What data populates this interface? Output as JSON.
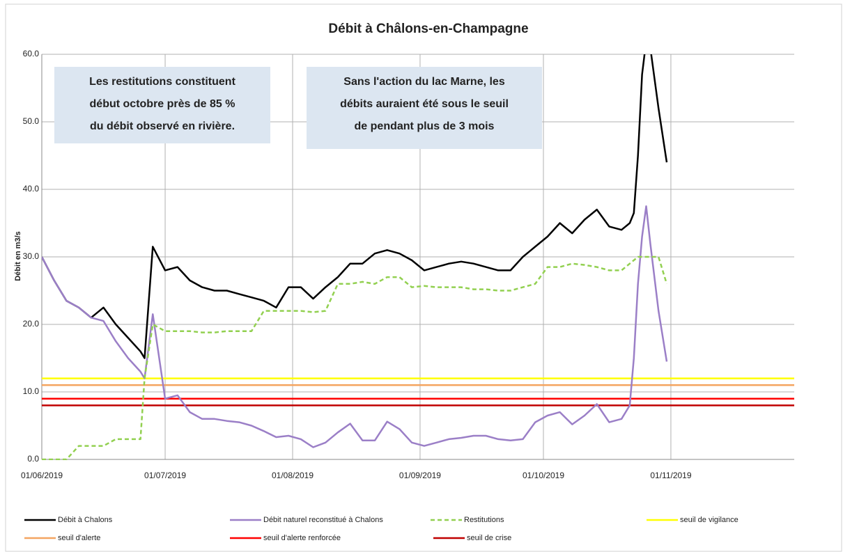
{
  "chart_data": {
    "type": "line",
    "title": "Débit à Châlons-en-Champagne",
    "y_label": "Débit en m3/s",
    "x": [
      "01/06/2019",
      "04/06/2019",
      "07/06/2019",
      "10/06/2019",
      "13/06/2019",
      "16/06/2019",
      "19/06/2019",
      "22/06/2019",
      "25/06/2019",
      "26/06/2019",
      "28/06/2019",
      "01/07/2019",
      "04/07/2019",
      "07/07/2019",
      "10/07/2019",
      "13/07/2019",
      "16/07/2019",
      "19/07/2019",
      "22/07/2019",
      "25/07/2019",
      "28/07/2019",
      "31/07/2019",
      "03/08/2019",
      "06/08/2019",
      "09/08/2019",
      "12/08/2019",
      "15/08/2019",
      "18/08/2019",
      "21/08/2019",
      "24/08/2019",
      "27/08/2019",
      "30/08/2019",
      "02/09/2019",
      "05/09/2019",
      "08/09/2019",
      "11/09/2019",
      "14/09/2019",
      "17/09/2019",
      "20/09/2019",
      "23/09/2019",
      "26/09/2019",
      "29/09/2019",
      "02/10/2019",
      "05/10/2019",
      "08/10/2019",
      "11/10/2019",
      "14/10/2019",
      "17/10/2019",
      "20/10/2019",
      "22/10/2019",
      "23/10/2019",
      "24/10/2019",
      "25/10/2019",
      "26/10/2019",
      "27/10/2019",
      "29/10/2019",
      "31/10/2019"
    ],
    "series": [
      {
        "name": "Débit à Chalons",
        "color": "#000000",
        "dash": false,
        "values": [
          30,
          26.5,
          23.5,
          22.5,
          21,
          22.5,
          20,
          18,
          16,
          15,
          31.5,
          28,
          28.5,
          26.5,
          25.5,
          25,
          25,
          24.5,
          24,
          23.5,
          22.5,
          25.5,
          25.5,
          23.8,
          25.5,
          27,
          29,
          29,
          30.5,
          31,
          30.5,
          29.5,
          28,
          28.5,
          29,
          29.3,
          29,
          28.5,
          28,
          28,
          30,
          31.5,
          33,
          35,
          33.5,
          35.5,
          37,
          34.5,
          34,
          35,
          36.5,
          45,
          57,
          62,
          61,
          52,
          44
        ]
      },
      {
        "name": "Débit naturel reconstitué à Chalons",
        "color": "#9b7fc7",
        "dash": false,
        "values": [
          30,
          26.5,
          23.5,
          22.5,
          21,
          20.5,
          17.5,
          15,
          13,
          12,
          21.5,
          9,
          9.5,
          7,
          6,
          6,
          5.7,
          5.5,
          5,
          4.2,
          3.3,
          3.5,
          3,
          1.8,
          2.5,
          4,
          5.3,
          2.8,
          2.8,
          5.6,
          4.5,
          2.5,
          2,
          2.5,
          3,
          3.2,
          3.5,
          3.5,
          3,
          2.8,
          3,
          5.5,
          6.5,
          7,
          5.2,
          6.5,
          8.2,
          5.5,
          6,
          8,
          15,
          26,
          33,
          37.5,
          32,
          22,
          14.5
        ]
      },
      {
        "name": "Restitutions",
        "color": "#92d050",
        "dash": true,
        "values": [
          0,
          0,
          0,
          2,
          2,
          2,
          3,
          3,
          3,
          12,
          20,
          19,
          19,
          19,
          18.8,
          18.8,
          19,
          19,
          19,
          22,
          22,
          22,
          22,
          21.8,
          22,
          26,
          26,
          26.3,
          26,
          27,
          27,
          25.5,
          25.7,
          25.5,
          25.5,
          25.5,
          25.2,
          25.2,
          25,
          25,
          25.5,
          26,
          28.5,
          28.5,
          29,
          28.8,
          28.5,
          28,
          28,
          29,
          29.5,
          30,
          30,
          30,
          30,
          30,
          26
        ]
      },
      {
        "name": "seuil de vigilance",
        "color": "#ffff00",
        "dash": false,
        "x": [
          "01/06/2019",
          "01/12/2019"
        ],
        "values": [
          12,
          12
        ]
      },
      {
        "name": "seuil d'alerte",
        "color": "#f4a460",
        "dash": false,
        "x": [
          "01/06/2019",
          "01/12/2019"
        ],
        "values": [
          11,
          11
        ]
      },
      {
        "name": "seuil d'alerte renforcée",
        "color": "#ff0000",
        "dash": false,
        "x": [
          "01/06/2019",
          "01/12/2019"
        ],
        "values": [
          9,
          9
        ]
      },
      {
        "name": "seuil de crise",
        "color": "#c00000",
        "dash": false,
        "x": [
          "01/06/2019",
          "01/12/2019"
        ],
        "values": [
          8,
          8
        ]
      }
    ],
    "xlim": [
      "01/06/2019",
      "01/12/2019"
    ],
    "xticks": [
      "01/06/2019",
      "01/07/2019",
      "01/08/2019",
      "01/09/2019",
      "01/10/2019",
      "01/11/2019"
    ],
    "ylim": [
      0,
      60
    ],
    "yticks": [
      {
        "value": 0,
        "label": "0.0"
      },
      {
        "value": 10,
        "label": "10.0"
      },
      {
        "value": 20,
        "label": "20.0"
      },
      {
        "value": 30,
        "label": "30.0"
      },
      {
        "value": 40,
        "label": "40.0"
      },
      {
        "value": 50,
        "label": "50.0"
      },
      {
        "value": 60,
        "label": "60.0"
      }
    ],
    "grid": true,
    "legend": "bottom",
    "annotations": [
      {
        "lines": [
          "Les restitutions constituent",
          "début octobre près de 85 %",
          "du débit observé en rivière."
        ]
      },
      {
        "lines": [
          "Sans l'action du lac Marne, les",
          "débits auraient été sous le seuil",
          "de pendant plus de 3 mois"
        ]
      }
    ]
  }
}
